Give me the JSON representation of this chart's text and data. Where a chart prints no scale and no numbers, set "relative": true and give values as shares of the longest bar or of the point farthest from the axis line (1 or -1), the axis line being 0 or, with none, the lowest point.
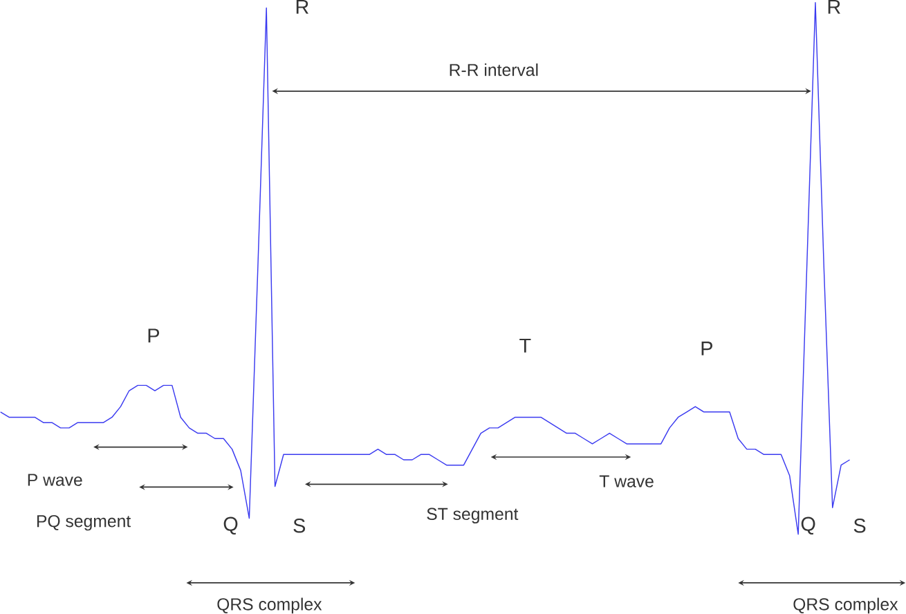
{
  "chart_data": {
    "type": "line",
    "relative": true,
    "marker": "none",
    "line_style": "solid",
    "categories": [
      null,
      null,
      null,
      null,
      null,
      null,
      null,
      null,
      null,
      null,
      null,
      null,
      null,
      null,
      null,
      null,
      null,
      null,
      null,
      null,
      null,
      null,
      null,
      null,
      null,
      null,
      null,
      null,
      null,
      null,
      null,
      null,
      null,
      null,
      null,
      null,
      null,
      null,
      null,
      null,
      null,
      null,
      null,
      null,
      null,
      null,
      null,
      null,
      null,
      null,
      null,
      null,
      null,
      null,
      null,
      null,
      null,
      null,
      null,
      null,
      null,
      null,
      null,
      null,
      null,
      null,
      null,
      null,
      null,
      null,
      null,
      null,
      null,
      null,
      null,
      null,
      null,
      null,
      null,
      null,
      null,
      null,
      null,
      null,
      null,
      null,
      null,
      null,
      null,
      null,
      null,
      null,
      null,
      null,
      null,
      null,
      null,
      null,
      null,
      null
    ],
    "series": [
      {
        "color": "#3a3af0",
        "values": [
          0.23,
          0.22,
          0.22,
          0.22,
          0.22,
          0.21,
          0.21,
          0.2,
          0.2,
          0.21,
          0.21,
          0.21,
          0.21,
          0.22,
          0.24,
          0.27,
          0.28,
          0.28,
          0.27,
          0.28,
          0.28,
          0.22,
          0.2,
          0.19,
          0.19,
          0.18,
          0.18,
          0.16,
          0.12,
          0.03,
          0.5,
          0.99,
          0.09,
          0.15,
          0.15,
          0.15,
          0.15,
          0.15,
          0.15,
          0.15,
          0.15,
          0.15,
          0.15,
          0.15,
          0.16,
          0.15,
          0.15,
          0.14,
          0.14,
          0.15,
          0.15,
          0.14,
          0.13,
          0.13,
          0.13,
          0.16,
          0.19,
          0.2,
          0.2,
          0.21,
          0.22,
          0.22,
          0.22,
          0.22,
          0.21,
          0.2,
          0.19,
          0.19,
          0.18,
          0.17,
          0.18,
          0.19,
          0.18,
          0.17,
          0.17,
          0.17,
          0.17,
          0.17,
          0.2,
          0.22,
          0.23,
          0.24,
          0.23,
          0.23,
          0.23,
          0.23,
          0.18,
          0.16,
          0.16,
          0.15,
          0.15,
          0.15,
          0.11,
          0,
          0.5,
          1,
          0.5,
          0.05,
          0.13,
          0.14
        ]
      }
    ],
    "annotations": [
      "R",
      "R",
      "R-R   interval",
      "P",
      "P",
      "T",
      "Q",
      "S",
      "Q",
      "S",
      "P wave",
      "PQ segment",
      "ST segment",
      "T wave",
      "QRS complex",
      "QRS complex"
    ]
  }
}
